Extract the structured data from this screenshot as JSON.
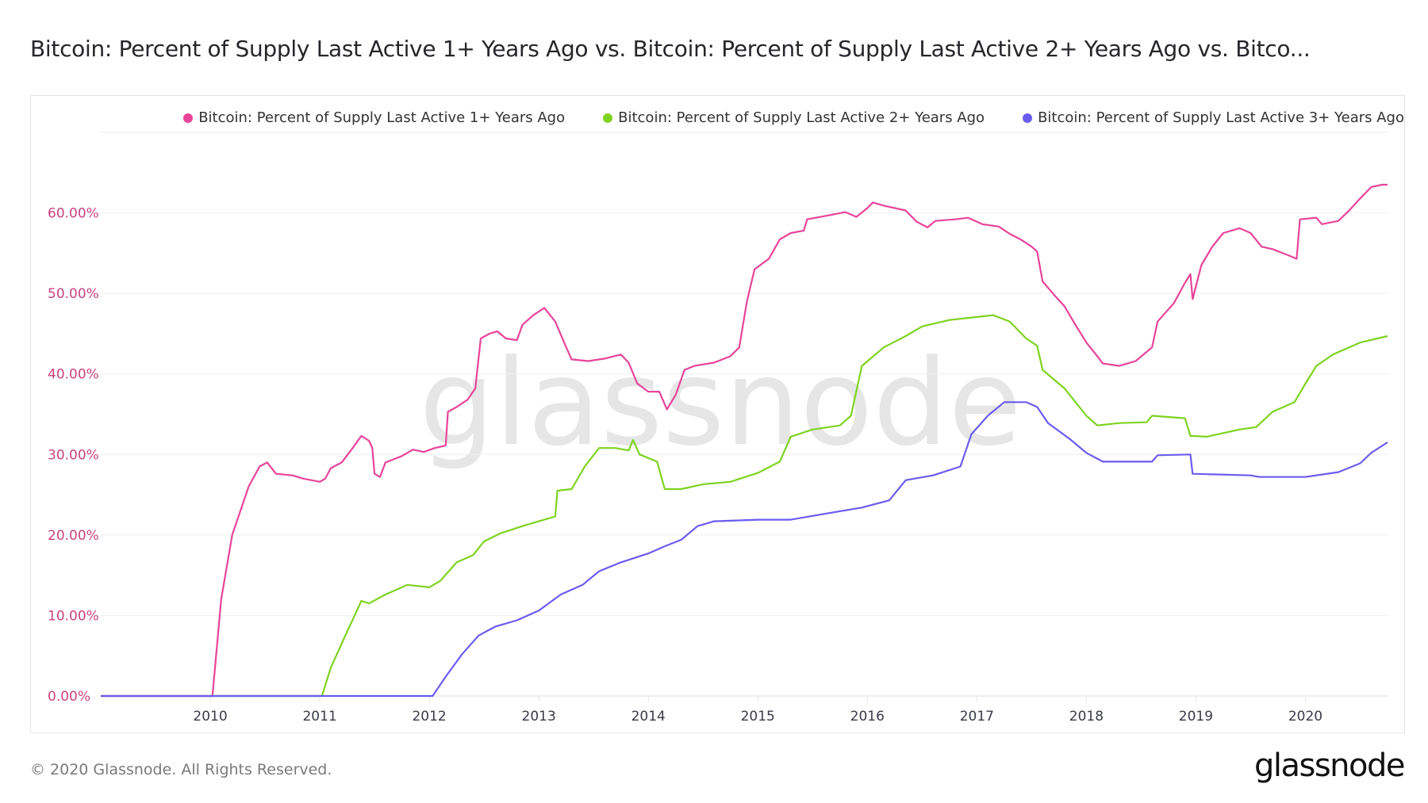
{
  "title": "Bitcoin: Percent of Supply Last Active 1+ Years Ago vs. Bitcoin: Percent of Supply Last Active 2+ Years Ago vs. Bitco...",
  "footer": "© 2020 Glassnode. All Rights Reserved.",
  "logo": "glassnode",
  "watermark": "glassnode",
  "chart_data": {
    "type": "line",
    "title": "Bitcoin: Percent of Supply Last Active 1+ Years Ago vs. Bitcoin: Percent of Supply Last Active 2+ Years Ago vs. Bitco...",
    "xlabel": "",
    "ylabel": "",
    "xlim": [
      2009.0,
      2020.75
    ],
    "ylim": [
      0,
      70
    ],
    "x_ticks": [
      "2010",
      "2011",
      "2012",
      "2013",
      "2014",
      "2015",
      "2016",
      "2017",
      "2018",
      "2019",
      "2020"
    ],
    "y_ticks": [
      "0.00%",
      "10.00%",
      "20.00%",
      "30.00%",
      "40.00%",
      "50.00%",
      "60.00%"
    ],
    "grid": "horizontal",
    "legend_position": "top-right",
    "axis_label_color": "#c8437f",
    "series": [
      {
        "name": "Bitcoin: Percent of Supply Last Active 1+ Years Ago",
        "color": "#e8449a",
        "points": [
          [
            2009.0,
            0
          ],
          [
            2010.02,
            0
          ],
          [
            2010.1,
            12
          ],
          [
            2010.2,
            20
          ],
          [
            2010.35,
            26
          ],
          [
            2010.45,
            28.5
          ],
          [
            2010.52,
            29
          ],
          [
            2010.6,
            27.6
          ],
          [
            2010.75,
            27.4
          ],
          [
            2010.85,
            27
          ],
          [
            2011.0,
            26.6
          ],
          [
            2011.05,
            27
          ],
          [
            2011.1,
            28.3
          ],
          [
            2011.2,
            29
          ],
          [
            2011.3,
            30.8
          ],
          [
            2011.38,
            32.3
          ],
          [
            2011.45,
            31.7
          ],
          [
            2011.48,
            30.8
          ],
          [
            2011.5,
            27.6
          ],
          [
            2011.55,
            27.2
          ],
          [
            2011.6,
            29
          ],
          [
            2011.75,
            29.8
          ],
          [
            2011.85,
            30.6
          ],
          [
            2011.95,
            30.3
          ],
          [
            2012.05,
            30.8
          ],
          [
            2012.15,
            31.1
          ],
          [
            2012.17,
            35.3
          ],
          [
            2012.25,
            35.9
          ],
          [
            2012.35,
            36.8
          ],
          [
            2012.42,
            38.2
          ],
          [
            2012.47,
            44.4
          ],
          [
            2012.55,
            45
          ],
          [
            2012.62,
            45.3
          ],
          [
            2012.7,
            44.4
          ],
          [
            2012.8,
            44.2
          ],
          [
            2012.85,
            46.1
          ],
          [
            2012.95,
            47.3
          ],
          [
            2013.05,
            48.2
          ],
          [
            2013.15,
            46.5
          ],
          [
            2013.25,
            43.3
          ],
          [
            2013.3,
            41.8
          ],
          [
            2013.45,
            41.6
          ],
          [
            2013.6,
            41.9
          ],
          [
            2013.75,
            42.4
          ],
          [
            2013.82,
            41.4
          ],
          [
            2013.9,
            38.8
          ],
          [
            2014.0,
            37.8
          ],
          [
            2014.1,
            37.8
          ],
          [
            2014.17,
            35.6
          ],
          [
            2014.25,
            37.4
          ],
          [
            2014.33,
            40.5
          ],
          [
            2014.42,
            41
          ],
          [
            2014.6,
            41.4
          ],
          [
            2014.75,
            42.2
          ],
          [
            2014.83,
            43.3
          ],
          [
            2014.9,
            49
          ],
          [
            2014.97,
            53
          ],
          [
            2015.1,
            54.3
          ],
          [
            2015.2,
            56.7
          ],
          [
            2015.3,
            57.5
          ],
          [
            2015.42,
            57.8
          ],
          [
            2015.45,
            59.2
          ],
          [
            2015.65,
            59.7
          ],
          [
            2015.8,
            60.1
          ],
          [
            2015.9,
            59.5
          ],
          [
            2016.0,
            60.6
          ],
          [
            2016.05,
            61.3
          ],
          [
            2016.15,
            60.9
          ],
          [
            2016.35,
            60.3
          ],
          [
            2016.45,
            58.9
          ],
          [
            2016.55,
            58.2
          ],
          [
            2016.62,
            59
          ],
          [
            2016.8,
            59.2
          ],
          [
            2016.92,
            59.4
          ],
          [
            2017.05,
            58.6
          ],
          [
            2017.2,
            58.3
          ],
          [
            2017.3,
            57.4
          ],
          [
            2017.4,
            56.7
          ],
          [
            2017.5,
            55.8
          ],
          [
            2017.55,
            55.2
          ],
          [
            2017.6,
            51.5
          ],
          [
            2017.7,
            49.9
          ],
          [
            2017.8,
            48.4
          ],
          [
            2017.9,
            46.1
          ],
          [
            2018.0,
            43.9
          ],
          [
            2018.1,
            42.2
          ],
          [
            2018.15,
            41.3
          ],
          [
            2018.3,
            41
          ],
          [
            2018.45,
            41.6
          ],
          [
            2018.6,
            43.3
          ],
          [
            2018.65,
            46.5
          ],
          [
            2018.8,
            48.8
          ],
          [
            2018.9,
            51.3
          ],
          [
            2018.95,
            52.4
          ],
          [
            2018.97,
            49.3
          ],
          [
            2019.05,
            53.5
          ],
          [
            2019.15,
            55.8
          ],
          [
            2019.25,
            57.5
          ],
          [
            2019.4,
            58.1
          ],
          [
            2019.5,
            57.5
          ],
          [
            2019.6,
            55.8
          ],
          [
            2019.7,
            55.5
          ],
          [
            2019.85,
            54.7
          ],
          [
            2019.92,
            54.3
          ],
          [
            2019.95,
            59.2
          ],
          [
            2020.1,
            59.4
          ],
          [
            2020.15,
            58.6
          ],
          [
            2020.3,
            59
          ],
          [
            2020.4,
            60.3
          ],
          [
            2020.5,
            61.8
          ],
          [
            2020.6,
            63.2
          ],
          [
            2020.7,
            63.5
          ],
          [
            2020.75,
            63.5
          ]
        ]
      },
      {
        "name": "Bitcoin: Percent of Supply Last Active 2+ Years Ago",
        "color": "#7ed321",
        "points": [
          [
            2009.0,
            0
          ],
          [
            2011.02,
            0
          ],
          [
            2011.1,
            3.5
          ],
          [
            2011.25,
            8
          ],
          [
            2011.38,
            11.8
          ],
          [
            2011.45,
            11.5
          ],
          [
            2011.6,
            12.6
          ],
          [
            2011.8,
            13.8
          ],
          [
            2012.0,
            13.5
          ],
          [
            2012.1,
            14.3
          ],
          [
            2012.25,
            16.6
          ],
          [
            2012.4,
            17.5
          ],
          [
            2012.5,
            19.2
          ],
          [
            2012.65,
            20.2
          ],
          [
            2012.85,
            21.1
          ],
          [
            2013.0,
            21.7
          ],
          [
            2013.15,
            22.3
          ],
          [
            2013.17,
            25.5
          ],
          [
            2013.3,
            25.7
          ],
          [
            2013.42,
            28.5
          ],
          [
            2013.55,
            30.8
          ],
          [
            2013.7,
            30.8
          ],
          [
            2013.82,
            30.5
          ],
          [
            2013.86,
            31.8
          ],
          [
            2013.92,
            30
          ],
          [
            2014.08,
            29.1
          ],
          [
            2014.15,
            25.7
          ],
          [
            2014.3,
            25.7
          ],
          [
            2014.5,
            26.3
          ],
          [
            2014.75,
            26.6
          ],
          [
            2015.0,
            27.7
          ],
          [
            2015.2,
            29.1
          ],
          [
            2015.3,
            32.2
          ],
          [
            2015.5,
            33.1
          ],
          [
            2015.75,
            33.6
          ],
          [
            2015.85,
            34.8
          ],
          [
            2015.95,
            41
          ],
          [
            2016.15,
            43.3
          ],
          [
            2016.35,
            44.7
          ],
          [
            2016.5,
            45.9
          ],
          [
            2016.75,
            46.7
          ],
          [
            2016.95,
            47
          ],
          [
            2017.15,
            47.3
          ],
          [
            2017.3,
            46.5
          ],
          [
            2017.45,
            44.4
          ],
          [
            2017.55,
            43.5
          ],
          [
            2017.6,
            40.5
          ],
          [
            2017.8,
            38.2
          ],
          [
            2018.0,
            34.8
          ],
          [
            2018.1,
            33.6
          ],
          [
            2018.3,
            33.9
          ],
          [
            2018.55,
            34
          ],
          [
            2018.6,
            34.8
          ],
          [
            2018.9,
            34.5
          ],
          [
            2018.95,
            32.3
          ],
          [
            2019.1,
            32.2
          ],
          [
            2019.4,
            33.1
          ],
          [
            2019.55,
            33.4
          ],
          [
            2019.7,
            35.3
          ],
          [
            2019.9,
            36.5
          ],
          [
            2020.0,
            38.8
          ],
          [
            2020.1,
            41
          ],
          [
            2020.25,
            42.4
          ],
          [
            2020.5,
            43.9
          ],
          [
            2020.75,
            44.7
          ]
        ]
      },
      {
        "name": "Bitcoin: Percent of Supply Last Active 3+ Years Ago",
        "color": "#6b5cf0",
        "points": [
          [
            2009.0,
            0
          ],
          [
            2012.03,
            0
          ],
          [
            2012.15,
            2.4
          ],
          [
            2012.3,
            5.2
          ],
          [
            2012.45,
            7.5
          ],
          [
            2012.6,
            8.6
          ],
          [
            2012.8,
            9.4
          ],
          [
            2013.0,
            10.6
          ],
          [
            2013.2,
            12.6
          ],
          [
            2013.4,
            13.8
          ],
          [
            2013.55,
            15.5
          ],
          [
            2013.75,
            16.6
          ],
          [
            2014.0,
            17.7
          ],
          [
            2014.15,
            18.6
          ],
          [
            2014.3,
            19.4
          ],
          [
            2014.45,
            21.1
          ],
          [
            2014.6,
            21.7
          ],
          [
            2015.0,
            21.9
          ],
          [
            2015.3,
            21.9
          ],
          [
            2015.6,
            22.6
          ],
          [
            2015.95,
            23.4
          ],
          [
            2016.2,
            24.3
          ],
          [
            2016.35,
            26.8
          ],
          [
            2016.6,
            27.4
          ],
          [
            2016.85,
            28.5
          ],
          [
            2016.95,
            32.5
          ],
          [
            2017.1,
            34.8
          ],
          [
            2017.25,
            36.5
          ],
          [
            2017.45,
            36.5
          ],
          [
            2017.55,
            35.9
          ],
          [
            2017.65,
            33.9
          ],
          [
            2017.85,
            31.9
          ],
          [
            2018.0,
            30.2
          ],
          [
            2018.15,
            29.1
          ],
          [
            2018.6,
            29.1
          ],
          [
            2018.65,
            29.9
          ],
          [
            2018.95,
            30
          ],
          [
            2018.97,
            27.6
          ],
          [
            2019.5,
            27.4
          ],
          [
            2019.58,
            27.2
          ],
          [
            2020.0,
            27.2
          ],
          [
            2020.3,
            27.8
          ],
          [
            2020.5,
            28.9
          ],
          [
            2020.6,
            30.2
          ],
          [
            2020.75,
            31.5
          ]
        ]
      }
    ]
  }
}
